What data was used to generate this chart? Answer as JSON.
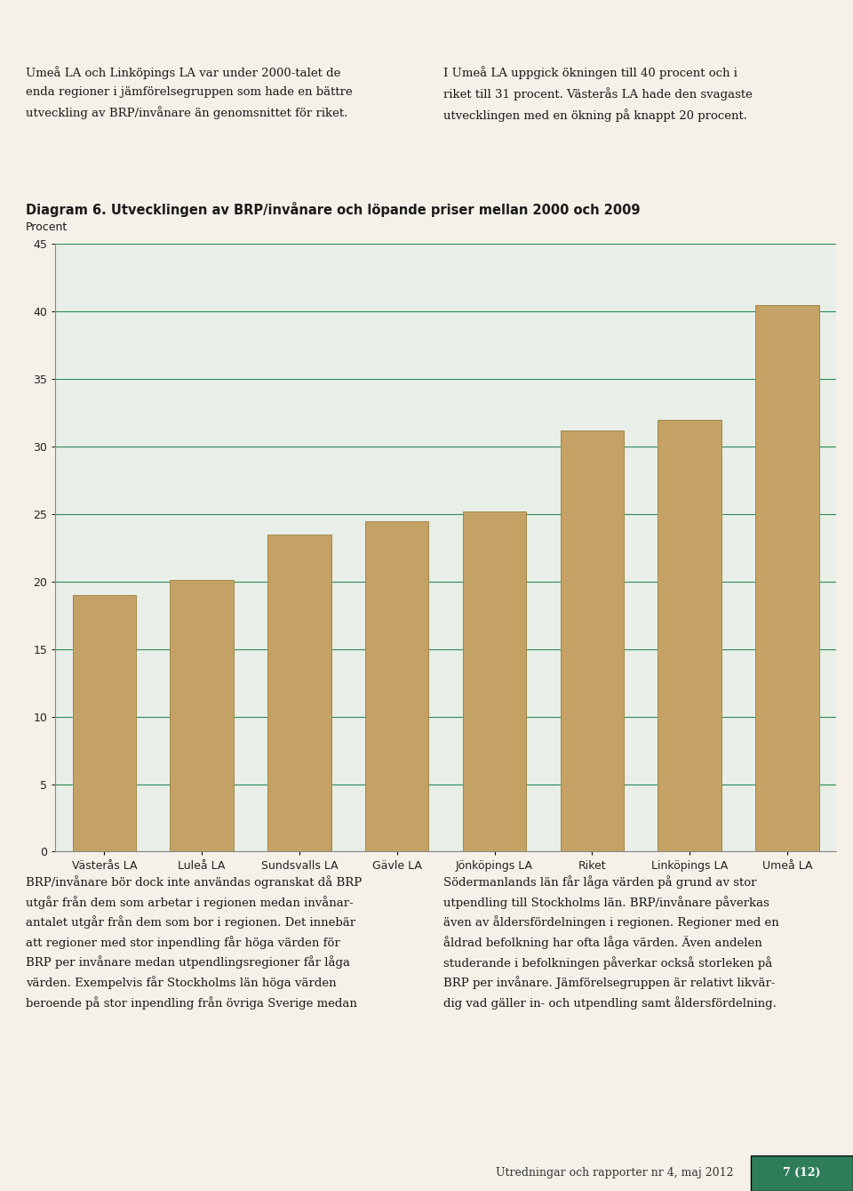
{
  "title_line1": "Diagram 6. Utvecklingen av BRP/invånare och löpande priser mellan 2000 och 2009",
  "ylabel": "Procent",
  "categories": [
    "Västerås LA",
    "Luleå LA",
    "Sundsvalls LA",
    "Gävle LA",
    "Jönköpings LA",
    "Riket",
    "Linköpings LA",
    "Umeå LA"
  ],
  "values": [
    19.0,
    20.1,
    23.5,
    24.5,
    25.2,
    31.2,
    32.0,
    40.5
  ],
  "bar_color": "#C4A265",
  "bar_edge_color": "#A08848",
  "plot_bg_color": "#E8EFE8",
  "grid_color": "#2E8B57",
  "axis_color": "#888888",
  "ylim": [
    0,
    45
  ],
  "yticks": [
    0,
    5,
    10,
    15,
    20,
    25,
    30,
    35,
    40,
    45
  ],
  "title_fontsize": 10.5,
  "ylabel_fontsize": 9,
  "tick_fontsize": 9,
  "body_fontsize": 9.5,
  "page_bg_color": "#F5F0E8",
  "text_color": "#1a1a1a",
  "text_left_col": "Umeå LA och Linköpings LA var under 2000-talet de\nenda regioner i jämförelsegruppen som hade en bättre\nutveckling av BRP/invånare än genomsnittet för riket.",
  "text_right_col": "I Umeå LA uppgick ökningen till 40 procent och i\nriket till 31 procent. Västerås LA hade den svagaste\nutvecklingen med en ökning på knappt 20 procent.",
  "text_below_left": "BRP/invånare bör dock inte användas ogranskat då BRP\nutgår från dem som arbetar i regionen medan invånar-\nantalet utgår från dem som bor i regionen. Det innebär\natt regioner med stor inpendling får höga värden för\nBRP per invånare medan utpendlingsregioner får låga\nvärden. Exempelvis får Stockholms län höga värden\nberoende på stor inpendling från övriga Sverige medan",
  "text_below_right": "Södermanlands län får låga värden på grund av stor\nutpendling till Stockholms län. BRP/invånare påverkas\näven av åldersfördelningen i regionen. Regioner med en\nåldrad befolkning har ofta låga värden. Även andelen\nstuderande i befolkningen påverkar också storleken på\nBRP per invånare. Jämförelsegruppen är relativt likvär-\ndig vad gäller in- och utpendling samt åldersfördelning.",
  "footer_left": "Utredningar och rapporter nr 4, maj 2012",
  "footer_right": "7 (12)",
  "footer_bg": "#2E7D5A"
}
